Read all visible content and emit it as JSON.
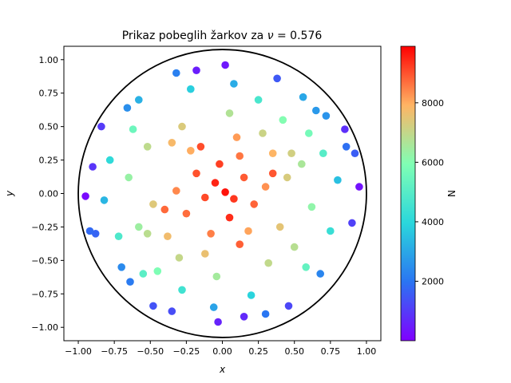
{
  "chart_data": {
    "type": "scatter",
    "title": "Prikaz pobeglih žarkov za ",
    "title_nu": "ν",
    "title_value": " = 0.576",
    "xlabel": "x",
    "ylabel": "y",
    "xlim": [
      -1.1,
      1.1
    ],
    "ylim": [
      -1.1,
      1.1
    ],
    "xticks": [
      -1.0,
      -0.75,
      -0.5,
      -0.25,
      0.0,
      0.25,
      0.5,
      0.75,
      1.0
    ],
    "xtick_labels": [
      "−1.00",
      "−0.75",
      "−0.50",
      "−0.25",
      "0.00",
      "0.25",
      "0.50",
      "0.75",
      "1.00"
    ],
    "yticks": [
      -1.0,
      -0.75,
      -0.5,
      -0.25,
      0.0,
      0.25,
      0.5,
      0.75,
      1.0
    ],
    "ytick_labels": [
      "−1.00",
      "−0.75",
      "−0.50",
      "−0.25",
      "0.00",
      "0.25",
      "0.50",
      "0.75",
      "1.00"
    ],
    "boundary_circle": {
      "center": [
        0,
        0
      ],
      "radius": 1.0,
      "color": "#000000"
    },
    "grid": false,
    "colormap": "rainbow",
    "colorbar": {
      "label": "N",
      "range": [
        1,
        9900
      ],
      "ticks": [
        2000,
        4000,
        6000,
        8000
      ],
      "tick_labels": [
        "2000",
        "4000",
        "6000",
        "8000"
      ]
    },
    "points": [
      [
        0.02,
        0.01,
        9700
      ],
      [
        -0.05,
        0.08,
        9500
      ],
      [
        0.08,
        -0.04,
        9300
      ],
      [
        -0.12,
        -0.03,
        9100
      ],
      [
        0.15,
        0.12,
        8900
      ],
      [
        -0.18,
        0.15,
        9000
      ],
      [
        0.05,
        -0.18,
        9400
      ],
      [
        -0.02,
        0.22,
        9200
      ],
      [
        0.22,
        -0.08,
        8800
      ],
      [
        -0.25,
        -0.15,
        8700
      ],
      [
        0.12,
        0.28,
        8600
      ],
      [
        -0.08,
        -0.3,
        8500
      ],
      [
        0.3,
        0.05,
        8300
      ],
      [
        -0.32,
        0.02,
        8400
      ],
      [
        0.18,
        -0.28,
        8100
      ],
      [
        -0.22,
        0.32,
        8000
      ],
      [
        0.35,
        0.3,
        7900
      ],
      [
        -0.38,
        -0.32,
        7700
      ],
      [
        0.4,
        -0.25,
        7500
      ],
      [
        -0.35,
        0.38,
        7800
      ],
      [
        0.1,
        0.42,
        8200
      ],
      [
        -0.12,
        -0.45,
        7600
      ],
      [
        0.45,
        0.12,
        7300
      ],
      [
        -0.48,
        -0.08,
        7400
      ],
      [
        0.28,
        0.45,
        7100
      ],
      [
        -0.3,
        -0.48,
        7000
      ],
      [
        0.5,
        -0.4,
        6800
      ],
      [
        -0.52,
        0.35,
        6900
      ],
      [
        0.55,
        0.22,
        6600
      ],
      [
        -0.58,
        -0.25,
        6400
      ],
      [
        0.05,
        0.6,
        6700
      ],
      [
        -0.04,
        -0.62,
        6500
      ],
      [
        0.62,
        -0.1,
        6200
      ],
      [
        -0.65,
        0.12,
        6300
      ],
      [
        0.42,
        0.55,
        6000
      ],
      [
        -0.45,
        -0.58,
        5900
      ],
      [
        0.6,
        0.45,
        5700
      ],
      [
        -0.62,
        0.48,
        5500
      ],
      [
        0.58,
        -0.55,
        5300
      ],
      [
        -0.55,
        -0.6,
        5100
      ],
      [
        0.7,
        0.3,
        5000
      ],
      [
        -0.72,
        -0.32,
        4800
      ],
      [
        0.25,
        0.7,
        4700
      ],
      [
        -0.28,
        -0.72,
        4500
      ],
      [
        0.75,
        -0.28,
        4300
      ],
      [
        -0.78,
        0.25,
        4100
      ],
      [
        0.2,
        -0.76,
        3900
      ],
      [
        -0.22,
        0.78,
        3800
      ],
      [
        0.8,
        0.1,
        3500
      ],
      [
        -0.82,
        -0.05,
        3300
      ],
      [
        0.08,
        0.82,
        3100
      ],
      [
        -0.06,
        -0.85,
        2900
      ],
      [
        0.65,
        0.62,
        2700
      ],
      [
        -0.66,
        0.64,
        2500
      ],
      [
        0.68,
        -0.6,
        2300
      ],
      [
        -0.64,
        -0.66,
        2100
      ],
      [
        0.86,
        0.35,
        1900
      ],
      [
        -0.88,
        -0.3,
        1700
      ],
      [
        0.38,
        0.86,
        1500
      ],
      [
        -0.35,
        -0.88,
        1300
      ],
      [
        0.9,
        -0.22,
        1100
      ],
      [
        -0.9,
        0.2,
        900
      ],
      [
        0.15,
        -0.92,
        700
      ],
      [
        -0.18,
        0.92,
        500
      ],
      [
        0.95,
        0.05,
        300
      ],
      [
        -0.95,
        -0.02,
        150
      ],
      [
        0.02,
        0.96,
        400
      ],
      [
        -0.03,
        -0.96,
        600
      ],
      [
        0.85,
        0.48,
        800
      ],
      [
        -0.84,
        0.5,
        1000
      ],
      [
        0.46,
        -0.84,
        1200
      ],
      [
        -0.48,
        -0.84,
        1400
      ],
      [
        0.35,
        0.15,
        8950
      ],
      [
        -0.15,
        0.35,
        9050
      ],
      [
        0.12,
        -0.38,
        8850
      ],
      [
        -0.4,
        -0.12,
        8750
      ],
      [
        0.48,
        0.3,
        7200
      ],
      [
        -0.28,
        0.5,
        7350
      ],
      [
        0.32,
        -0.52,
        6950
      ],
      [
        -0.52,
        -0.3,
        6850
      ],
      [
        0.72,
        0.58,
        2600
      ],
      [
        -0.7,
        -0.55,
        2400
      ],
      [
        0.56,
        0.72,
        3000
      ],
      [
        -0.58,
        0.7,
        3200
      ],
      [
        0.92,
        0.3,
        1600
      ],
      [
        -0.92,
        -0.28,
        1800
      ],
      [
        0.3,
        -0.9,
        2000
      ],
      [
        -0.32,
        0.9,
        2200
      ]
    ]
  }
}
